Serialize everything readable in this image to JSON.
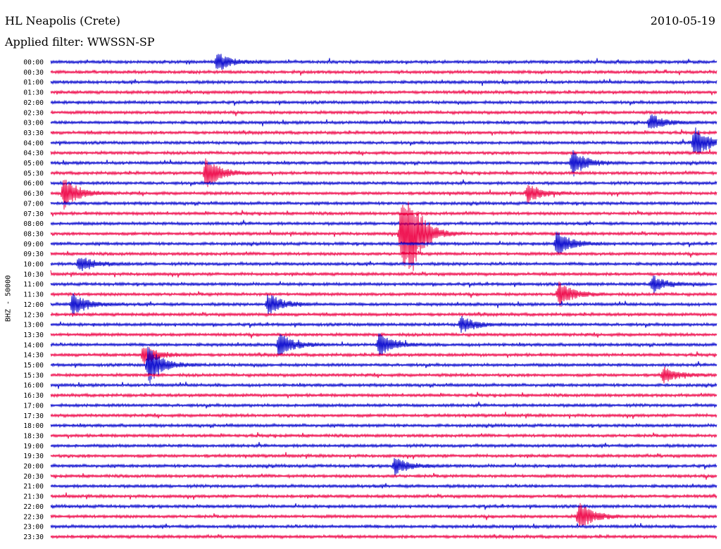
{
  "header": {
    "station": "HL Neapolis (Crete)",
    "date": "2010-05-19",
    "filter": "Applied filter: WWSSN-SP"
  },
  "channel_label": "BHZ - 50000",
  "colors": {
    "trace_a": "#0000cc",
    "trace_b": "#ee0044",
    "text": "#000000",
    "background": "#ffffff"
  },
  "chart_data": {
    "type": "helicorder",
    "title": "HL Neapolis (Crete)",
    "date": "2010-05-19",
    "filter": "WWSSN-SP",
    "ylabel": "BHZ - 50000",
    "row_interval_minutes": 30,
    "trace_colors": [
      "#0000cc",
      "#ee0044"
    ],
    "rows": [
      "00:00",
      "00:30",
      "01:00",
      "01:30",
      "02:00",
      "02:30",
      "03:00",
      "03:30",
      "04:00",
      "04:30",
      "05:00",
      "05:30",
      "06:00",
      "06:30",
      "07:00",
      "07:30",
      "08:00",
      "08:30",
      "09:00",
      "09:30",
      "10:00",
      "10:30",
      "11:00",
      "11:30",
      "12:00",
      "12:30",
      "13:00",
      "13:30",
      "14:00",
      "14:30",
      "15:00",
      "15:30",
      "16:00",
      "16:30",
      "17:00",
      "17:30",
      "18:00",
      "18:30",
      "19:00",
      "19:30",
      "20:00",
      "20:30",
      "21:00",
      "21:30",
      "22:00",
      "22:30",
      "23:00",
      "23:30"
    ],
    "events": [
      {
        "row": 0,
        "minute": 7.5,
        "amp": 0.6
      },
      {
        "row": 6,
        "minute": 27,
        "amp": 0.5
      },
      {
        "row": 8,
        "minute": 29,
        "amp": 1.0
      },
      {
        "row": 10,
        "minute": 23.5,
        "amp": 0.8
      },
      {
        "row": 11,
        "minute": 7,
        "amp": 1.0
      },
      {
        "row": 13,
        "minute": 0.6,
        "amp": 1.0
      },
      {
        "row": 13,
        "minute": 21.5,
        "amp": 0.6
      },
      {
        "row": 17,
        "minute": 15.8,
        "amp": 2.5
      },
      {
        "row": 17,
        "minute": 16.2,
        "amp": 1.5
      },
      {
        "row": 18,
        "minute": 22.8,
        "amp": 0.8
      },
      {
        "row": 20,
        "minute": 1.3,
        "amp": 0.5
      },
      {
        "row": 22,
        "minute": 27.1,
        "amp": 0.5
      },
      {
        "row": 23,
        "minute": 22.9,
        "amp": 0.8
      },
      {
        "row": 24,
        "minute": 1,
        "amp": 0.7
      },
      {
        "row": 24,
        "minute": 9.8,
        "amp": 0.7
      },
      {
        "row": 26,
        "minute": 18.5,
        "amp": 0.5
      },
      {
        "row": 28,
        "minute": 10.3,
        "amp": 0.7
      },
      {
        "row": 28,
        "minute": 14.8,
        "amp": 0.7
      },
      {
        "row": 29,
        "minute": 4.2,
        "amp": 0.6
      },
      {
        "row": 30,
        "minute": 4.4,
        "amp": 1.2
      },
      {
        "row": 31,
        "minute": 27.6,
        "amp": 0.5
      },
      {
        "row": 40,
        "minute": 15.5,
        "amp": 0.5
      },
      {
        "row": 45,
        "minute": 23.8,
        "amp": 0.9
      }
    ]
  }
}
